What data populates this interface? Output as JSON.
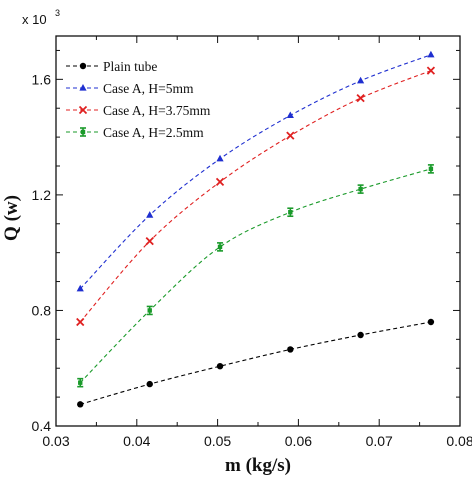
{
  "chart_data": {
    "type": "line",
    "xlabel": "m (kg/s)",
    "ylabel": "Q (w)",
    "y_multiplier": {
      "base": "x 10",
      "exponent": "3"
    },
    "xlim": [
      0.03,
      0.08
    ],
    "ylim": [
      0.4,
      1.75
    ],
    "x_ticks": [
      0.03,
      0.04,
      0.05,
      0.06,
      0.07,
      0.08
    ],
    "x_tick_labels": [
      "0.03",
      "0.04",
      "0.05",
      "0.06",
      "0.07",
      "0.08"
    ],
    "y_ticks": [
      0.4,
      0.8,
      1.2,
      1.6
    ],
    "y_tick_labels": [
      "0.4",
      "0.8",
      "1.2",
      "1.6"
    ],
    "grid": false,
    "legend_position": "top-left",
    "x": [
      0.033,
      0.0416,
      0.0503,
      0.059,
      0.0677,
      0.0764
    ],
    "series": [
      {
        "name": "Plain tube",
        "color": "#000000",
        "marker": "circle",
        "values": [
          0.475,
          0.545,
          0.607,
          0.665,
          0.715,
          0.76
        ]
      },
      {
        "name": "Case A, H=5mm",
        "color": "#1f2fd0",
        "marker": "triangle",
        "values": [
          0.875,
          1.13,
          1.325,
          1.475,
          1.595,
          1.685
        ]
      },
      {
        "name": "Case A, H=3.75mm",
        "color": "#e02020",
        "marker": "x",
        "values": [
          0.76,
          1.04,
          1.245,
          1.405,
          1.535,
          1.63
        ]
      },
      {
        "name": "Case A, H=2.5mm",
        "color": "#1a9a2a",
        "marker": "errorbar",
        "values": [
          0.55,
          0.8,
          1.02,
          1.14,
          1.22,
          1.29
        ]
      }
    ]
  }
}
